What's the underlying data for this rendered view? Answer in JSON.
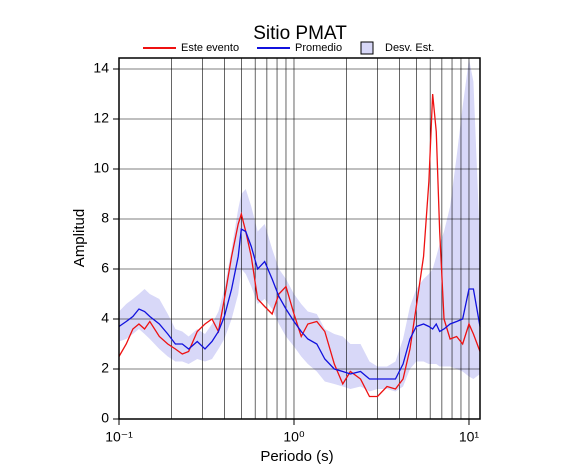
{
  "chart_data": {
    "type": "line",
    "title": "Sitio PMAT",
    "xlabel": "Periodo (s)",
    "ylabel": "Amplitud",
    "log_x": true,
    "grid": true,
    "xlim": [
      0.1,
      11.56
    ],
    "ylim": [
      0,
      14.44
    ],
    "xticks": [
      {
        "value": 0.1,
        "label": "10⁻¹"
      },
      {
        "value": 1,
        "label": "10⁰"
      },
      {
        "value": 10,
        "label": "10¹"
      }
    ],
    "xminorticks": [
      0.2,
      0.3,
      0.4,
      0.5,
      0.6,
      0.7,
      0.8,
      0.9,
      2,
      3,
      4,
      5,
      6,
      7,
      8,
      9
    ],
    "yticks": [
      0,
      2,
      4,
      6,
      8,
      10,
      12,
      14
    ],
    "x": [
      0.1,
      0.11,
      0.12,
      0.13,
      0.14,
      0.15,
      0.17,
      0.19,
      0.21,
      0.23,
      0.25,
      0.28,
      0.31,
      0.34,
      0.37,
      0.4,
      0.44,
      0.48,
      0.5,
      0.53,
      0.57,
      0.62,
      0.68,
      0.75,
      0.82,
      0.9,
      1.0,
      1.1,
      1.2,
      1.35,
      1.5,
      1.7,
      1.9,
      2.1,
      2.4,
      2.7,
      3.0,
      3.4,
      3.8,
      4.2,
      4.6,
      5.0,
      5.5,
      5.9,
      6.2,
      6.5,
      6.8,
      7.2,
      7.8,
      8.5,
      9.2,
      10,
      10.6,
      11.56
    ],
    "series": [
      {
        "name": "Este evento",
        "color": "#ee1111",
        "values": [
          2.5,
          3.0,
          3.6,
          3.8,
          3.6,
          3.9,
          3.3,
          3.0,
          2.8,
          2.6,
          2.7,
          3.5,
          3.8,
          4.0,
          3.5,
          4.8,
          6.5,
          7.8,
          8.2,
          7.5,
          6.5,
          4.8,
          4.5,
          4.2,
          5.0,
          5.3,
          4.2,
          3.3,
          3.8,
          3.9,
          3.5,
          2.2,
          1.4,
          1.9,
          1.6,
          0.9,
          0.9,
          1.3,
          1.2,
          1.6,
          2.8,
          4.5,
          6.5,
          9.5,
          13.0,
          11.5,
          7.5,
          4.0,
          3.2,
          3.3,
          3.0,
          3.8,
          3.4,
          2.7
        ]
      },
      {
        "name": "Promedio",
        "color": "#1111dd",
        "values": [
          3.7,
          3.9,
          4.1,
          4.4,
          4.3,
          4.1,
          3.8,
          3.4,
          3.0,
          3.0,
          2.8,
          3.1,
          2.8,
          3.1,
          3.5,
          4.1,
          5.2,
          6.5,
          7.6,
          7.5,
          6.9,
          6.0,
          6.3,
          5.6,
          4.9,
          4.4,
          3.9,
          3.5,
          3.2,
          3.0,
          2.4,
          2.0,
          1.9,
          1.8,
          1.9,
          1.6,
          1.6,
          1.6,
          1.6,
          2.2,
          3.2,
          3.7,
          3.8,
          3.7,
          3.6,
          3.8,
          3.5,
          3.6,
          3.8,
          3.9,
          4.0,
          5.2,
          5.2,
          3.7
        ]
      }
    ],
    "band": {
      "name": "Desv. Est.",
      "color": "#d8d8f8",
      "upper": [
        4.3,
        4.6,
        4.8,
        5.0,
        5.2,
        5.0,
        4.8,
        4.2,
        3.6,
        3.5,
        3.3,
        3.6,
        3.4,
        3.8,
        4.3,
        5.2,
        6.8,
        8.4,
        9.0,
        9.2,
        8.5,
        7.5,
        7.8,
        6.8,
        6.0,
        5.6,
        5.0,
        4.6,
        4.3,
        4.2,
        3.6,
        3.4,
        3.3,
        3.0,
        3.0,
        2.3,
        2.1,
        2.1,
        2.3,
        3.2,
        4.5,
        5.2,
        5.6,
        5.8,
        6.0,
        6.5,
        7.0,
        7.5,
        8.5,
        10.5,
        12.5,
        14.4,
        13.5,
        7.0
      ],
      "lower": [
        3.1,
        3.2,
        3.4,
        3.6,
        3.4,
        3.2,
        2.8,
        2.5,
        2.3,
        2.3,
        2.2,
        2.4,
        2.3,
        2.4,
        2.8,
        3.2,
        4.0,
        5.0,
        6.0,
        5.8,
        5.3,
        4.6,
        4.8,
        4.4,
        3.8,
        3.3,
        2.9,
        2.5,
        2.2,
        1.9,
        1.5,
        1.4,
        1.3,
        1.2,
        1.3,
        1.1,
        1.2,
        1.2,
        1.1,
        1.3,
        2.0,
        2.3,
        2.3,
        2.2,
        2.2,
        2.2,
        2.1,
        2.1,
        2.1,
        2.0,
        1.9,
        1.7,
        1.6,
        1.8
      ]
    }
  }
}
